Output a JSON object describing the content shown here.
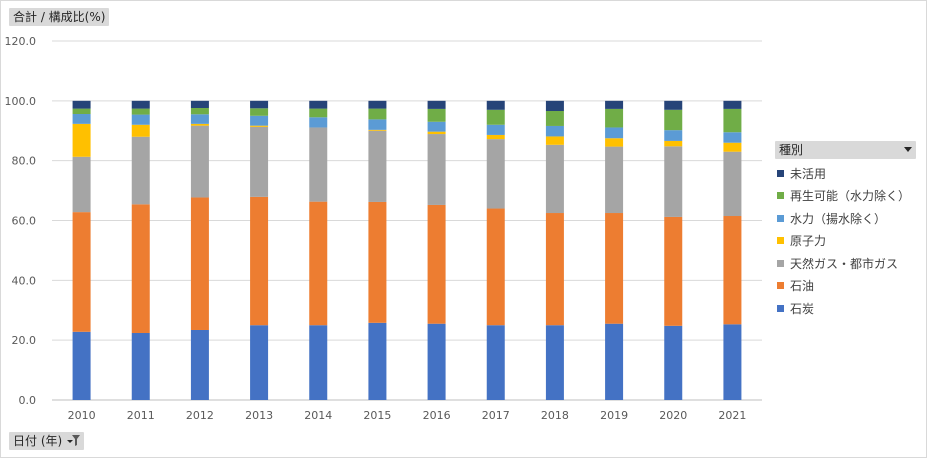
{
  "value_field_button": {
    "label": "合計 / 構成比(%)"
  },
  "axis_field_button": {
    "label": "日付 (年)"
  },
  "legend_field_button": {
    "label": "種別"
  },
  "chart_data": {
    "type": "bar",
    "stacked": true,
    "title": "",
    "xlabel": "",
    "ylabel": "",
    "ylim": [
      0,
      120
    ],
    "yticks": [
      "0.0",
      "20.0",
      "40.0",
      "60.0",
      "80.0",
      "100.0",
      "120.0"
    ],
    "grid": true,
    "legend_position": "right",
    "categories": [
      "2010",
      "2011",
      "2012",
      "2013",
      "2014",
      "2015",
      "2016",
      "2017",
      "2018",
      "2019",
      "2020",
      "2021"
    ],
    "series": [
      {
        "name": "石炭",
        "color": "#4472C4",
        "values": [
          22.8,
          22.4,
          23.4,
          25.0,
          25.0,
          25.8,
          25.5,
          25.0,
          25.0,
          25.5,
          24.8,
          25.3
        ]
      },
      {
        "name": "石油",
        "color": "#ED7D31",
        "values": [
          40.0,
          43.0,
          44.3,
          42.9,
          41.3,
          40.4,
          39.7,
          39.0,
          37.5,
          37.0,
          36.4,
          36.2
        ]
      },
      {
        "name": "天然ガス・都市ガス",
        "color": "#A5A5A5",
        "values": [
          18.5,
          22.6,
          24.0,
          23.4,
          24.8,
          23.8,
          23.7,
          23.2,
          22.8,
          22.2,
          23.6,
          21.5
        ]
      },
      {
        "name": "原子力",
        "color": "#FFC000",
        "values": [
          11.0,
          4.0,
          0.6,
          0.4,
          0.0,
          0.3,
          0.8,
          1.4,
          2.8,
          2.8,
          1.8,
          3.0
        ]
      },
      {
        "name": "水力（揚水除く）",
        "color": "#5B9BD5",
        "values": [
          3.3,
          3.4,
          3.2,
          3.3,
          3.4,
          3.5,
          3.3,
          3.4,
          3.5,
          3.6,
          3.6,
          3.5
        ]
      },
      {
        "name": "再生可能（水力除く）",
        "color": "#70AD47",
        "values": [
          1.8,
          2.0,
          2.1,
          2.5,
          2.9,
          3.6,
          4.3,
          5.0,
          5.0,
          6.2,
          6.8,
          7.8
        ]
      },
      {
        "name": "未活用",
        "color": "#264478",
        "values": [
          2.6,
          2.6,
          2.4,
          2.5,
          2.6,
          2.6,
          2.7,
          3.0,
          3.4,
          2.7,
          3.0,
          2.7
        ]
      }
    ]
  }
}
